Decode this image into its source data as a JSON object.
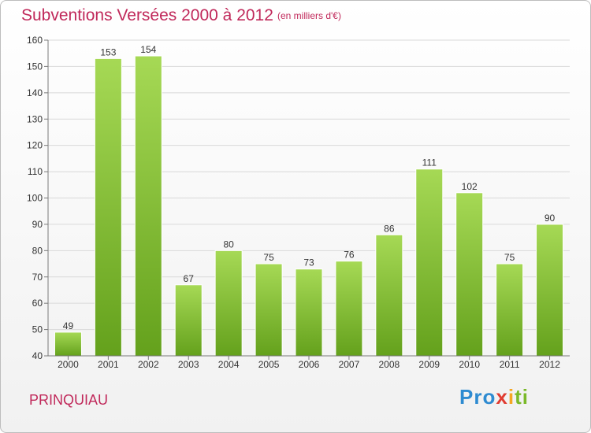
{
  "title": "Subventions Versées 2000 à 2012",
  "unit_note": "(en milliers d'€)",
  "commune": "PRINQUIAU",
  "logo": {
    "letters": [
      "P",
      "r",
      "o",
      "x",
      "i",
      "t",
      "i"
    ],
    "colors": [
      "#2e8bd1",
      "#2e8bd1",
      "#2e8bd1",
      "#e03c31",
      "#f5a623",
      "#7ab929",
      "#7ab929"
    ]
  },
  "colors": {
    "title": "#c0285a",
    "bar_light": "#a6d955",
    "bar_dark": "#64a11c",
    "grid": "#d9d9d9",
    "axis": "#7a7a7a"
  },
  "chart_data": {
    "type": "bar",
    "title": "Subventions Versées 2000 à 2012",
    "subtitle": "(en milliers d'€)",
    "xlabel": "",
    "ylabel": "",
    "categories": [
      "2000",
      "2001",
      "2002",
      "2003",
      "2004",
      "2005",
      "2006",
      "2007",
      "2008",
      "2009",
      "2010",
      "2011",
      "2012"
    ],
    "values": [
      49,
      153,
      154,
      67,
      80,
      75,
      73,
      76,
      86,
      111,
      102,
      75,
      90
    ],
    "ylim": [
      40,
      160
    ],
    "yticks": [
      40,
      50,
      60,
      70,
      80,
      90,
      100,
      110,
      120,
      130,
      140,
      150,
      160
    ],
    "grid": true,
    "legend": "none"
  }
}
